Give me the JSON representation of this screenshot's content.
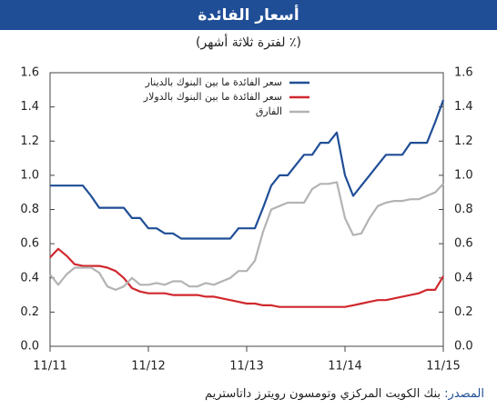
{
  "chart_data": {
    "type": "line",
    "title": "أسعار الفائدة",
    "subtitle": "(٪ لفترة ثلاثة أشهر)",
    "source_label": "المصدر:",
    "source": "بنك الكويت المركزي وتومسون رويترز داتاستريم",
    "categories": [
      "11/11",
      null,
      null,
      null,
      null,
      null,
      null,
      null,
      null,
      null,
      null,
      null,
      "11/12",
      null,
      null,
      null,
      null,
      null,
      null,
      null,
      null,
      null,
      null,
      null,
      "11/13",
      null,
      null,
      null,
      null,
      null,
      null,
      null,
      null,
      null,
      null,
      null,
      "11/14",
      null,
      null,
      null,
      null,
      null,
      null,
      null,
      null,
      null,
      null,
      null,
      "11/15"
    ],
    "series": [
      {
        "name": "سعر الفائدة ما بين البنوك بالدينار",
        "color": "#1f4e96",
        "values": [
          0.94,
          0.94,
          0.94,
          0.94,
          0.94,
          0.88,
          0.81,
          0.81,
          0.81,
          0.81,
          0.75,
          0.75,
          0.69,
          0.69,
          0.66,
          0.66,
          0.63,
          0.63,
          0.63,
          0.63,
          0.63,
          0.63,
          0.63,
          0.69,
          0.69,
          0.69,
          0.81,
          0.94,
          1.0,
          1.0,
          1.06,
          1.12,
          1.12,
          1.19,
          1.19,
          1.25,
          1.0,
          0.88,
          0.94,
          1.0,
          1.06,
          1.12,
          1.12,
          1.12,
          1.19,
          1.19,
          1.19,
          1.31,
          1.44
        ]
      },
      {
        "name": "سعر الفائدة ما بين البنوك بالدولار",
        "color": "#d0282e",
        "values": [
          0.52,
          0.57,
          0.53,
          0.48,
          0.47,
          0.47,
          0.47,
          0.46,
          0.44,
          0.4,
          0.34,
          0.32,
          0.31,
          0.31,
          0.31,
          0.3,
          0.3,
          0.3,
          0.3,
          0.29,
          0.29,
          0.28,
          0.27,
          0.26,
          0.25,
          0.25,
          0.24,
          0.24,
          0.23,
          0.23,
          0.23,
          0.23,
          0.23,
          0.23,
          0.23,
          0.23,
          0.23,
          0.24,
          0.25,
          0.26,
          0.27,
          0.27,
          0.28,
          0.29,
          0.3,
          0.31,
          0.33,
          0.33,
          0.41
        ]
      },
      {
        "name": "الفارق",
        "color": "#b3b3b3",
        "values": [
          0.42,
          0.36,
          0.42,
          0.46,
          0.46,
          0.46,
          0.43,
          0.35,
          0.33,
          0.35,
          0.4,
          0.36,
          0.36,
          0.37,
          0.36,
          0.38,
          0.38,
          0.35,
          0.35,
          0.37,
          0.36,
          0.38,
          0.4,
          0.44,
          0.44,
          0.5,
          0.67,
          0.8,
          0.82,
          0.84,
          0.84,
          0.84,
          0.92,
          0.95,
          0.95,
          0.96,
          0.75,
          0.65,
          0.66,
          0.75,
          0.82,
          0.84,
          0.85,
          0.85,
          0.86,
          0.86,
          0.88,
          0.9,
          0.95
        ]
      }
    ],
    "ylim": [
      0,
      1.6
    ],
    "yticks": [
      {
        "value": 0,
        "label": "0.0"
      },
      0.2,
      0.4,
      0.6,
      0.8,
      {
        "value": 1,
        "label": "1.0"
      },
      1.2,
      1.4,
      1.6
    ],
    "y2lim": [
      0,
      1.6
    ],
    "y2ticks": [
      {
        "value": 0,
        "label": "0.0"
      },
      0.2,
      0.4,
      0.6,
      0.8,
      {
        "value": 1,
        "label": "1.0"
      },
      1.2,
      1.4,
      1.6
    ],
    "legend": "top-left"
  }
}
